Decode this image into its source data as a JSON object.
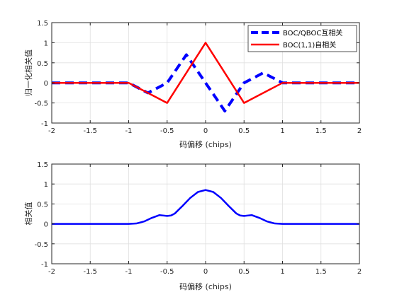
{
  "chart_data": [
    {
      "type": "line",
      "xlabel": "码偏移 (chips)",
      "ylabel": "归一化相关值",
      "xlim": [
        -2,
        2
      ],
      "ylim": [
        -1,
        1.5
      ],
      "xticks": [
        -2,
        -1.5,
        -1,
        -0.5,
        0,
        0.5,
        1,
        1.5,
        2
      ],
      "xtick_labels": [
        "-2",
        "-1.5",
        "-1",
        "-0.5",
        "0",
        "0.5",
        "1",
        "1.5",
        "2"
      ],
      "yticks": [
        -1,
        -0.5,
        0,
        0.5,
        1,
        1.5
      ],
      "ytick_labels": [
        "-1",
        "-0.5",
        "0",
        "0.5",
        "1",
        "1.5"
      ],
      "grid": true,
      "legend": "top-right",
      "series": [
        {
          "name": "BOC/QBOC互相关",
          "color": "#0000ff",
          "style": "dashed",
          "x": [
            -2,
            -1,
            -0.75,
            -0.5,
            -0.25,
            0,
            0.25,
            0.5,
            0.75,
            1,
            2
          ],
          "y": [
            0,
            0,
            -0.25,
            0,
            0.7,
            0,
            -0.7,
            0,
            0.25,
            0,
            0
          ]
        },
        {
          "name": "BOC(1,1)自相关",
          "color": "#ff0000",
          "style": "solid",
          "x": [
            -2,
            -1,
            -0.5,
            0,
            0.5,
            1,
            2
          ],
          "y": [
            0,
            0,
            -0.5,
            1,
            -0.5,
            0,
            0
          ]
        }
      ]
    },
    {
      "type": "line",
      "xlabel": "码偏移 (chips)",
      "ylabel": "相关值",
      "xlim": [
        -2,
        2
      ],
      "ylim": [
        -1,
        1.5
      ],
      "xticks": [
        -2,
        -1.5,
        -1,
        -0.5,
        0,
        0.5,
        1,
        1.5,
        2
      ],
      "xtick_labels": [
        "-2",
        "-1.5",
        "-1",
        "-0.5",
        "0",
        "0.5",
        "1",
        "1.5",
        "2"
      ],
      "yticks": [
        -1,
        -0.5,
        0,
        0.5,
        1,
        1.5
      ],
      "ytick_labels": [
        "-1",
        "-0.5",
        "0",
        "0.5",
        "1",
        "1.5"
      ],
      "grid": true,
      "series": [
        {
          "color": "#0000ff",
          "style": "solid",
          "x": [
            -2,
            -1,
            -0.9,
            -0.8,
            -0.7,
            -0.6,
            -0.5,
            -0.45,
            -0.4,
            -0.3,
            -0.2,
            -0.1,
            0,
            0.1,
            0.2,
            0.3,
            0.4,
            0.45,
            0.5,
            0.6,
            0.7,
            0.8,
            0.9,
            1,
            2
          ],
          "y": [
            0,
            0,
            0.01,
            0.06,
            0.15,
            0.22,
            0.2,
            0.21,
            0.26,
            0.45,
            0.65,
            0.8,
            0.85,
            0.8,
            0.65,
            0.45,
            0.26,
            0.21,
            0.2,
            0.22,
            0.15,
            0.06,
            0.01,
            0,
            0
          ]
        }
      ]
    }
  ]
}
